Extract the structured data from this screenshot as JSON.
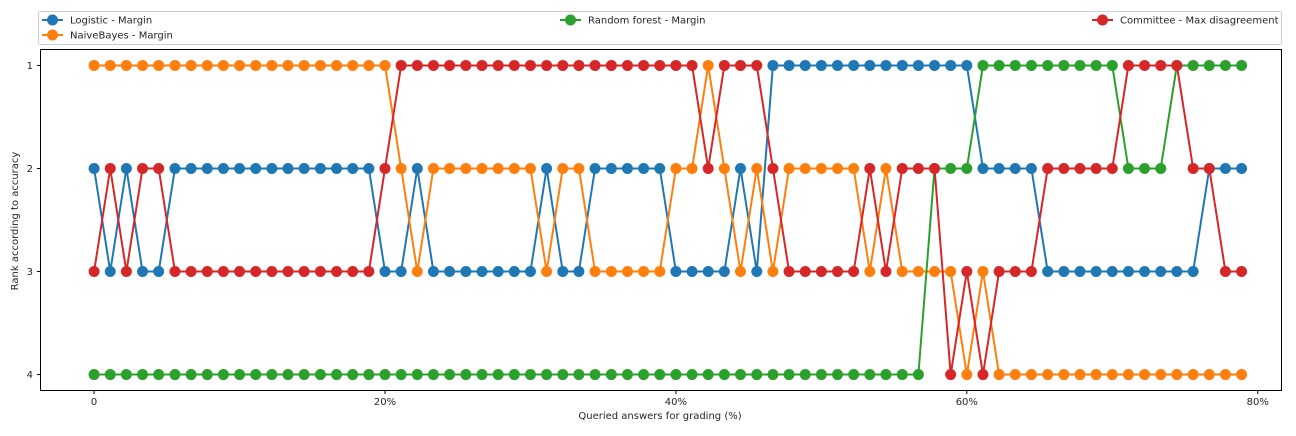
{
  "chart_data": {
    "type": "line",
    "title": "",
    "xlabel": "Queried answers for grading (%)",
    "ylabel": "Rank according to accuracy",
    "xlim": [
      -3.65,
      81.6
    ],
    "ylim": [
      4.15,
      0.85
    ],
    "y_inverted": true,
    "grid": false,
    "legend_position": "top (above plot, 3 columns)",
    "x_ticks": [
      0,
      20,
      40,
      60,
      80
    ],
    "x_tick_labels": [
      "0",
      "20%",
      "40%",
      "60%",
      "80%"
    ],
    "y_ticks": [
      1,
      2,
      3,
      4
    ],
    "y_tick_labels": [
      "1",
      "2",
      "3",
      "4"
    ],
    "x": [
      0,
      1.11,
      2.22,
      3.33,
      4.44,
      5.56,
      6.67,
      7.78,
      8.89,
      10,
      11.11,
      12.22,
      13.33,
      14.44,
      15.56,
      16.67,
      17.78,
      18.89,
      20,
      21.11,
      22.22,
      23.33,
      24.44,
      25.56,
      26.67,
      27.78,
      28.89,
      30,
      31.11,
      32.22,
      33.33,
      34.44,
      35.56,
      36.67,
      37.78,
      38.89,
      40,
      41.11,
      42.22,
      43.33,
      44.44,
      45.56,
      46.67,
      47.78,
      48.89,
      50,
      51.11,
      52.22,
      53.33,
      54.44,
      55.56,
      56.67,
      57.78,
      58.89,
      60,
      61.11,
      62.22,
      63.33,
      64.44,
      65.56,
      66.67,
      67.78,
      68.89,
      70,
      71.11,
      72.22,
      73.33,
      74.44,
      75.56,
      76.67,
      77.78,
      78.89
    ],
    "series": [
      {
        "name": "Logistic - Margin",
        "color": "#1f77b4",
        "values": [
          2,
          3,
          2,
          3,
          3,
          2,
          2,
          2,
          2,
          2,
          2,
          2,
          2,
          2,
          2,
          2,
          2,
          2,
          3,
          3,
          2,
          3,
          3,
          3,
          3,
          3,
          3,
          3,
          2,
          3,
          3,
          2,
          2,
          2,
          2,
          2,
          3,
          3,
          3,
          3,
          2,
          3,
          1,
          1,
          1,
          1,
          1,
          1,
          1,
          1,
          1,
          1,
          1,
          1,
          1,
          2,
          2,
          2,
          2,
          3,
          3,
          3,
          3,
          3,
          3,
          3,
          3,
          3,
          3,
          2,
          2,
          2
        ]
      },
      {
        "name": "NaiveBayes - Margin",
        "color": "#ff7f0e",
        "values": [
          1,
          1,
          1,
          1,
          1,
          1,
          1,
          1,
          1,
          1,
          1,
          1,
          1,
          1,
          1,
          1,
          1,
          1,
          1,
          2,
          3,
          2,
          2,
          2,
          2,
          2,
          2,
          2,
          3,
          2,
          2,
          3,
          3,
          3,
          3,
          3,
          2,
          2,
          1,
          2,
          3,
          2,
          3,
          2,
          2,
          2,
          2,
          2,
          3,
          2,
          3,
          3,
          3,
          3,
          4,
          3,
          4,
          4,
          4,
          4,
          4,
          4,
          4,
          4,
          4,
          4,
          4,
          4,
          4,
          4,
          4,
          4
        ]
      },
      {
        "name": "Random forest - Margin",
        "color": "#2ca02c",
        "values": [
          4,
          4,
          4,
          4,
          4,
          4,
          4,
          4,
          4,
          4,
          4,
          4,
          4,
          4,
          4,
          4,
          4,
          4,
          4,
          4,
          4,
          4,
          4,
          4,
          4,
          4,
          4,
          4,
          4,
          4,
          4,
          4,
          4,
          4,
          4,
          4,
          4,
          4,
          4,
          4,
          4,
          4,
          4,
          4,
          4,
          4,
          4,
          4,
          4,
          4,
          4,
          4,
          2,
          2,
          2,
          1,
          1,
          1,
          1,
          1,
          1,
          1,
          1,
          1,
          2,
          2,
          2,
          1,
          1,
          1,
          1,
          1
        ]
      },
      {
        "name": "Committee - Max disagreement",
        "color": "#d62728",
        "values": [
          3,
          2,
          3,
          2,
          2,
          3,
          3,
          3,
          3,
          3,
          3,
          3,
          3,
          3,
          3,
          3,
          3,
          3,
          2,
          1,
          1,
          1,
          1,
          1,
          1,
          1,
          1,
          1,
          1,
          1,
          1,
          1,
          1,
          1,
          1,
          1,
          1,
          1,
          2,
          1,
          1,
          1,
          2,
          3,
          3,
          3,
          3,
          3,
          2,
          3,
          2,
          2,
          2,
          4,
          3,
          4,
          3,
          3,
          3,
          2,
          2,
          2,
          2,
          2,
          1,
          1,
          1,
          1,
          2,
          2,
          3,
          3
        ]
      }
    ]
  }
}
